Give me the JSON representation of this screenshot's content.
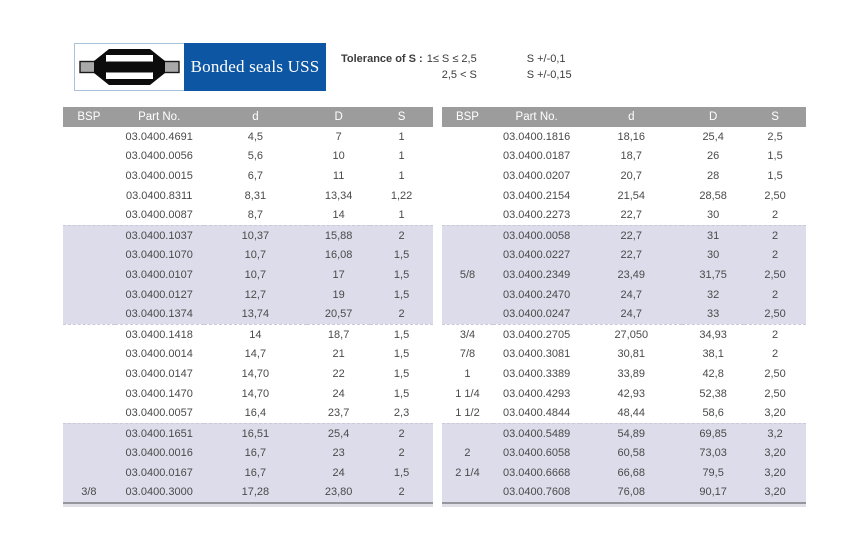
{
  "header": {
    "title": "Bonded seals USS",
    "tolerance": {
      "label": "Tolerance of S",
      "separator": ":",
      "lines": [
        {
          "condition": "1≤ S ≤ 2,5",
          "value": "S +/-0,1"
        },
        {
          "condition": "2,5 < S",
          "value": "S +/-0,15"
        }
      ]
    },
    "logo_icon": "bonded-seal-cross-section"
  },
  "colors": {
    "brand_blue": "#0d56a3",
    "logo_border_blue": "#a9c2da",
    "header_gray": "#9c9c9c",
    "band_lavender": "#dcdcea",
    "text_gray": "#4a4a4a"
  },
  "table": {
    "columns": [
      "BSP",
      "Part No.",
      "d",
      "D",
      "S"
    ],
    "left_rows": [
      {
        "bsp": "",
        "part": "03.0400.4691",
        "d_inner": "4,5",
        "d_outer": "7",
        "s": "1"
      },
      {
        "bsp": "",
        "part": "03.0400.0056",
        "d_inner": "5,6",
        "d_outer": "10",
        "s": "1"
      },
      {
        "bsp": "",
        "part": "03.0400.0015",
        "d_inner": "6,7",
        "d_outer": "11",
        "s": "1"
      },
      {
        "bsp": "",
        "part": "03.0400.8311",
        "d_inner": "8,31",
        "d_outer": "13,34",
        "s": "1,22"
      },
      {
        "bsp": "",
        "part": "03.0400.0087",
        "d_inner": "8,7",
        "d_outer": "14",
        "s": "1"
      },
      {
        "bsp": "",
        "part": "03.0400.1037",
        "d_inner": "10,37",
        "d_outer": "15,88",
        "s": "2"
      },
      {
        "bsp": "",
        "part": "03.0400.1070",
        "d_inner": "10,7",
        "d_outer": "16,08",
        "s": "1,5"
      },
      {
        "bsp": "",
        "part": "03.0400.0107",
        "d_inner": "10,7",
        "d_outer": "17",
        "s": "1,5"
      },
      {
        "bsp": "",
        "part": "03.0400.0127",
        "d_inner": "12,7",
        "d_outer": "19",
        "s": "1,5"
      },
      {
        "bsp": "",
        "part": "03.0400.1374",
        "d_inner": "13,74",
        "d_outer": "20,57",
        "s": "2"
      },
      {
        "bsp": "",
        "part": "03.0400.1418",
        "d_inner": "14",
        "d_outer": "18,7",
        "s": "1,5"
      },
      {
        "bsp": "",
        "part": "03.0400.0014",
        "d_inner": "14,7",
        "d_outer": "21",
        "s": "1,5"
      },
      {
        "bsp": "",
        "part": "03.0400.0147",
        "d_inner": "14,70",
        "d_outer": "22",
        "s": "1,5"
      },
      {
        "bsp": "",
        "part": "03.0400.1470",
        "d_inner": "14,70",
        "d_outer": "24",
        "s": "1,5"
      },
      {
        "bsp": "",
        "part": "03.0400.0057",
        "d_inner": "16,4",
        "d_outer": "23,7",
        "s": "2,3"
      },
      {
        "bsp": "",
        "part": "03.0400.1651",
        "d_inner": "16,51",
        "d_outer": "25,4",
        "s": "2"
      },
      {
        "bsp": "",
        "part": "03.0400.0016",
        "d_inner": "16,7",
        "d_outer": "23",
        "s": "2"
      },
      {
        "bsp": "",
        "part": "03.0400.0167",
        "d_inner": "16,7",
        "d_outer": "24",
        "s": "1,5"
      },
      {
        "bsp": "3/8",
        "part": "03.0400.3000",
        "d_inner": "17,28",
        "d_outer": "23,80",
        "s": "2"
      }
    ],
    "right_rows": [
      {
        "bsp": "",
        "part": "03.0400.1816",
        "d_inner": "18,16",
        "d_outer": "25,4",
        "s": "2,5"
      },
      {
        "bsp": "",
        "part": "03.0400.0187",
        "d_inner": "18,7",
        "d_outer": "26",
        "s": "1,5"
      },
      {
        "bsp": "",
        "part": "03.0400.0207",
        "d_inner": "20,7",
        "d_outer": "28",
        "s": "1,5"
      },
      {
        "bsp": "",
        "part": "03.0400.2154",
        "d_inner": "21,54",
        "d_outer": "28,58",
        "s": "2,50"
      },
      {
        "bsp": "",
        "part": "03.0400.2273",
        "d_inner": "22,7",
        "d_outer": "30",
        "s": "2"
      },
      {
        "bsp": "",
        "part": "03.0400.0058",
        "d_inner": "22,7",
        "d_outer": "31",
        "s": "2"
      },
      {
        "bsp": "",
        "part": "03.0400.0227",
        "d_inner": "22,7",
        "d_outer": "30",
        "s": "2"
      },
      {
        "bsp": "5/8",
        "part": "03.0400.2349",
        "d_inner": "23,49",
        "d_outer": "31,75",
        "s": "2,50"
      },
      {
        "bsp": "",
        "part": "03.0400.2470",
        "d_inner": "24,7",
        "d_outer": "32",
        "s": "2"
      },
      {
        "bsp": "",
        "part": "03.0400.0247",
        "d_inner": "24,7",
        "d_outer": "33",
        "s": "2,50"
      },
      {
        "bsp": "3/4",
        "part": "03.0400.2705",
        "d_inner": "27,050",
        "d_outer": "34,93",
        "s": "2"
      },
      {
        "bsp": "7/8",
        "part": "03.0400.3081",
        "d_inner": "30,81",
        "d_outer": "38,1",
        "s": "2"
      },
      {
        "bsp": "1",
        "part": "03.0400.3389",
        "d_inner": "33,89",
        "d_outer": "42,8",
        "s": "2,50"
      },
      {
        "bsp": "1 1/4",
        "part": "03.0400.4293",
        "d_inner": "42,93",
        "d_outer": "52,38",
        "s": "2,50"
      },
      {
        "bsp": "1 1/2",
        "part": "03.0400.4844",
        "d_inner": "48,44",
        "d_outer": "58,6",
        "s": "3,20"
      },
      {
        "bsp": "",
        "part": "03.0400.5489",
        "d_inner": "54,89",
        "d_outer": "69,85",
        "s": "3,2"
      },
      {
        "bsp": "2",
        "part": "03.0400.6058",
        "d_inner": "60,58",
        "d_outer": "73,03",
        "s": "3,20"
      },
      {
        "bsp": "2 1/4",
        "part": "03.0400.6668",
        "d_inner": "66,68",
        "d_outer": "79,5",
        "s": "3,20"
      },
      {
        "bsp": "",
        "part": "03.0400.7608",
        "d_inner": "76,08",
        "d_outer": "90,17",
        "s": "3,20"
      }
    ]
  }
}
